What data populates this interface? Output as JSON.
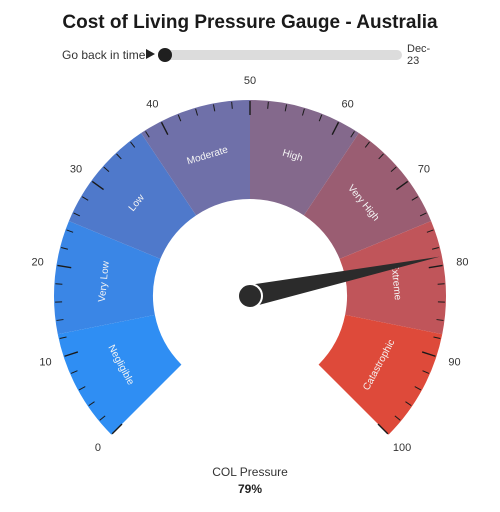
{
  "title": "Cost of Living Pressure Gauge - Australia",
  "time_slider": {
    "label": "Go back in time",
    "end_label": "Dec-\n23",
    "position": 0.02
  },
  "chart_data": {
    "type": "gauge",
    "title": "Cost of Living Pressure Gauge - Australia",
    "range": [
      0,
      100
    ],
    "value": 79,
    "major_ticks": [
      0,
      10,
      20,
      30,
      40,
      50,
      60,
      70,
      80,
      90,
      100
    ],
    "bands": [
      {
        "name": "Negligible",
        "from": 0,
        "to": 12.5,
        "color": "#2f8ef3"
      },
      {
        "name": "Very Low",
        "from": 12.5,
        "to": 25,
        "color": "#3a86e6"
      },
      {
        "name": "Low",
        "from": 25,
        "to": 37.5,
        "color": "#4f79cb"
      },
      {
        "name": "Moderate",
        "from": 37.5,
        "to": 50,
        "color": "#6f70a9"
      },
      {
        "name": "High",
        "from": 50,
        "to": 62.5,
        "color": "#84698c"
      },
      {
        "name": "Very High",
        "from": 62.5,
        "to": 75,
        "color": "#9a5d72"
      },
      {
        "name": "Extreme",
        "from": 75,
        "to": 87.5,
        "color": "#c0555a"
      },
      {
        "name": "Catastrophic",
        "from": 87.5,
        "to": 100,
        "color": "#de4a3a"
      }
    ],
    "value_label": "COL Pressure",
    "value_display": "79%"
  },
  "colors": {
    "needle": "#2b2b2b",
    "tick": "#1a1a1a",
    "band_text": "#f4f4f4"
  }
}
